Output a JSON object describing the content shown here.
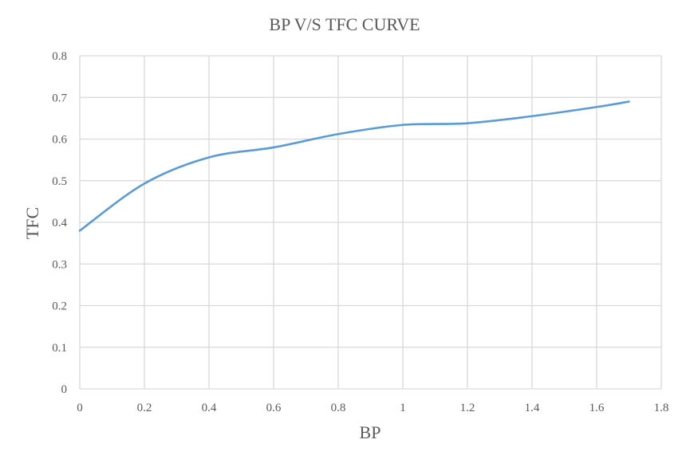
{
  "chart_data": {
    "type": "line",
    "title": "BP V/S TFC CURVE",
    "xlabel": "BP",
    "ylabel": "TFC",
    "xlim": [
      0,
      1.8
    ],
    "ylim": [
      0,
      0.8
    ],
    "x_ticks": [
      "0",
      "0.2",
      "0.4",
      "0.6",
      "0.8",
      "1",
      "1.2",
      "1.4",
      "1.6",
      "1.8"
    ],
    "y_ticks": [
      "0",
      "0.1",
      "0.2",
      "0.3",
      "0.4",
      "0.5",
      "0.6",
      "0.7",
      "0.8"
    ],
    "grid": true,
    "line_style": "smooth",
    "series": [
      {
        "color": "#5b9bd5",
        "x": [
          0,
          0.2,
          0.4,
          0.6,
          0.8,
          1.0,
          1.2,
          1.4,
          1.6,
          1.7
        ],
        "y": [
          0.38,
          0.493,
          0.556,
          0.58,
          0.612,
          0.634,
          0.638,
          0.655,
          0.677,
          0.69
        ]
      }
    ]
  }
}
